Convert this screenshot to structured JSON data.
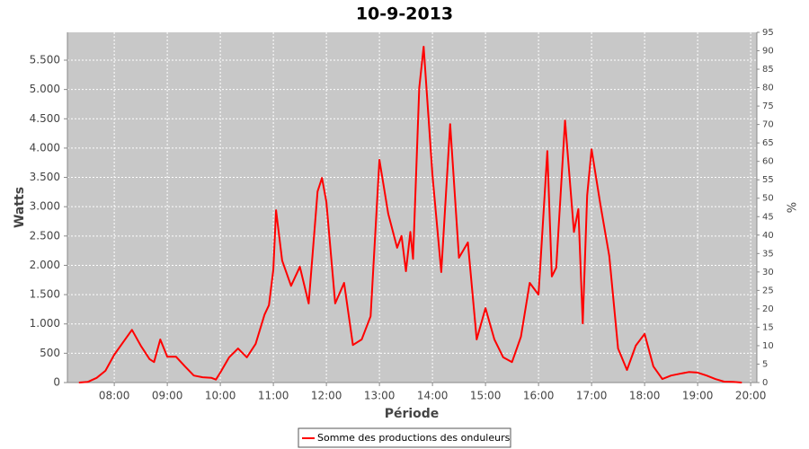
{
  "chart_data": {
    "type": "line",
    "title": "10-9-2013",
    "x_label": "Période",
    "y_label": "Watts",
    "y2_label": "%",
    "x": [
      "07:20",
      "07:30",
      "07:40",
      "07:50",
      "08:00",
      "08:20",
      "08:30",
      "08:40",
      "08:45",
      "08:52",
      "09:00",
      "09:10",
      "09:20",
      "09:30",
      "09:40",
      "09:50",
      "09:55",
      "10:00",
      "10:10",
      "10:20",
      "10:30",
      "10:40",
      "10:50",
      "10:55",
      "11:00",
      "11:03",
      "11:10",
      "11:20",
      "11:30",
      "11:40",
      "11:50",
      "11:55",
      "12:00",
      "12:10",
      "12:20",
      "12:30",
      "12:40",
      "12:50",
      "13:00",
      "13:10",
      "13:20",
      "13:25",
      "13:30",
      "13:35",
      "13:38",
      "13:45",
      "13:50",
      "14:00",
      "14:10",
      "14:20",
      "14:30",
      "14:40",
      "14:50",
      "15:00",
      "15:10",
      "15:20",
      "15:30",
      "15:40",
      "15:50",
      "16:00",
      "16:10",
      "16:15",
      "16:20",
      "16:30",
      "16:40",
      "16:45",
      "16:50",
      "16:55",
      "17:00",
      "17:10",
      "17:20",
      "17:30",
      "17:40",
      "17:50",
      "18:00",
      "18:10",
      "18:20",
      "18:30",
      "18:40",
      "18:50",
      "19:00",
      "19:10",
      "19:20",
      "19:30",
      "19:40",
      "19:50"
    ],
    "series": [
      {
        "name": "Somme des productions des onduleurs",
        "color": "#ff0000",
        "values": [
          0,
          10,
          80,
          200,
          475,
          900,
          630,
          400,
          350,
          735,
          440,
          440,
          275,
          120,
          90,
          80,
          50,
          170,
          430,
          580,
          430,
          660,
          1160,
          1320,
          1930,
          2940,
          2080,
          1650,
          1975,
          1350,
          3260,
          3490,
          3080,
          1350,
          1700,
          640,
          735,
          1130,
          3800,
          2880,
          2300,
          2500,
          1900,
          2570,
          2110,
          5025,
          5730,
          3540,
          1885,
          4410,
          2130,
          2390,
          735,
          1270,
          735,
          430,
          350,
          780,
          1700,
          1500,
          3950,
          1810,
          1960,
          4470,
          2570,
          2960,
          1010,
          3190,
          3980,
          3030,
          2160,
          580,
          215,
          630,
          830,
          275,
          60,
          120,
          150,
          180,
          170,
          120,
          60,
          15,
          10,
          0
        ]
      }
    ],
    "xlim": [
      "07:07",
      "20:07"
    ],
    "xticks": [
      "08:00",
      "09:00",
      "10:00",
      "11:00",
      "12:00",
      "13:00",
      "14:00",
      "15:00",
      "16:00",
      "17:00",
      "18:00",
      "19:00",
      "20:00"
    ],
    "ylim": [
      0,
      5975
    ],
    "yticks": [
      0,
      500,
      {
        "value": 1000,
        "label": "1.000"
      },
      {
        "value": 1500,
        "label": "1.500"
      },
      {
        "value": 2000,
        "label": "2.000"
      },
      {
        "value": 2500,
        "label": "2.500"
      },
      {
        "value": 3000,
        "label": "3.000"
      },
      {
        "value": 3500,
        "label": "3.500"
      },
      {
        "value": 4000,
        "label": "4.000"
      },
      {
        "value": 4500,
        "label": "4.500"
      },
      {
        "value": 5000,
        "label": "5.000"
      },
      {
        "value": 5500,
        "label": "5.500"
      }
    ],
    "y2lim": [
      0,
      95
    ],
    "y2ticks": [
      0,
      5,
      10,
      15,
      20,
      25,
      30,
      35,
      40,
      45,
      50,
      55,
      60,
      65,
      70,
      75,
      80,
      85,
      90,
      95
    ],
    "grid": true
  }
}
